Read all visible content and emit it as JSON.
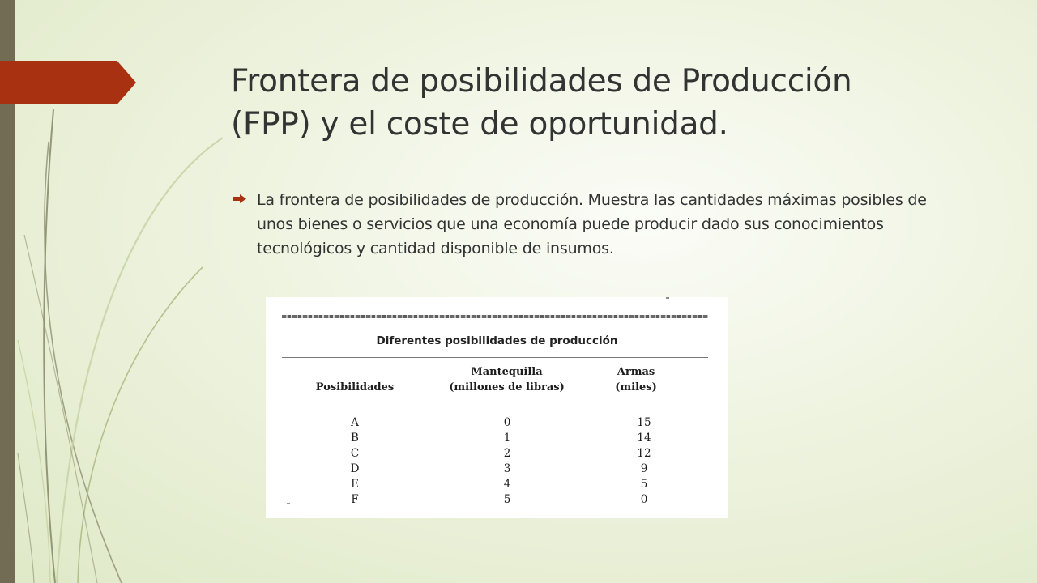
{
  "slide": {
    "title_line1": "Frontera de posibilidades de Producción",
    "title_line2": "(FPP) y el coste de oportunidad.",
    "bullet_icon": "arrow-right-icon",
    "bullet_text": "La frontera de posibilidades de producción. Muestra las cantidades máximas posibles de unos bienes o servicios que una economía puede producir dado sus conocimientos tecnológicos y cantidad disponible de insumos.",
    "colors": {
      "accent": "#a83111",
      "left_bar": "#736c55",
      "background": "#eef3df",
      "text": "#333333"
    }
  },
  "table": {
    "title": "Diferentes posibilidades de producción",
    "headers": {
      "posibilidades": "Posibilidades",
      "mantequilla_line1": "Mantequilla",
      "mantequilla_line2": "(millones de libras)",
      "armas_line1": "Armas",
      "armas_line2": "(miles)"
    },
    "rows": [
      {
        "letter": "A",
        "butter": "0",
        "guns": "15"
      },
      {
        "letter": "B",
        "butter": "1",
        "guns": "14"
      },
      {
        "letter": "C",
        "butter": "2",
        "guns": "12"
      },
      {
        "letter": "D",
        "butter": "3",
        "guns": "9"
      },
      {
        "letter": "E",
        "butter": "4",
        "guns": "5"
      },
      {
        "letter": "F",
        "butter": "5",
        "guns": "0"
      }
    ]
  }
}
